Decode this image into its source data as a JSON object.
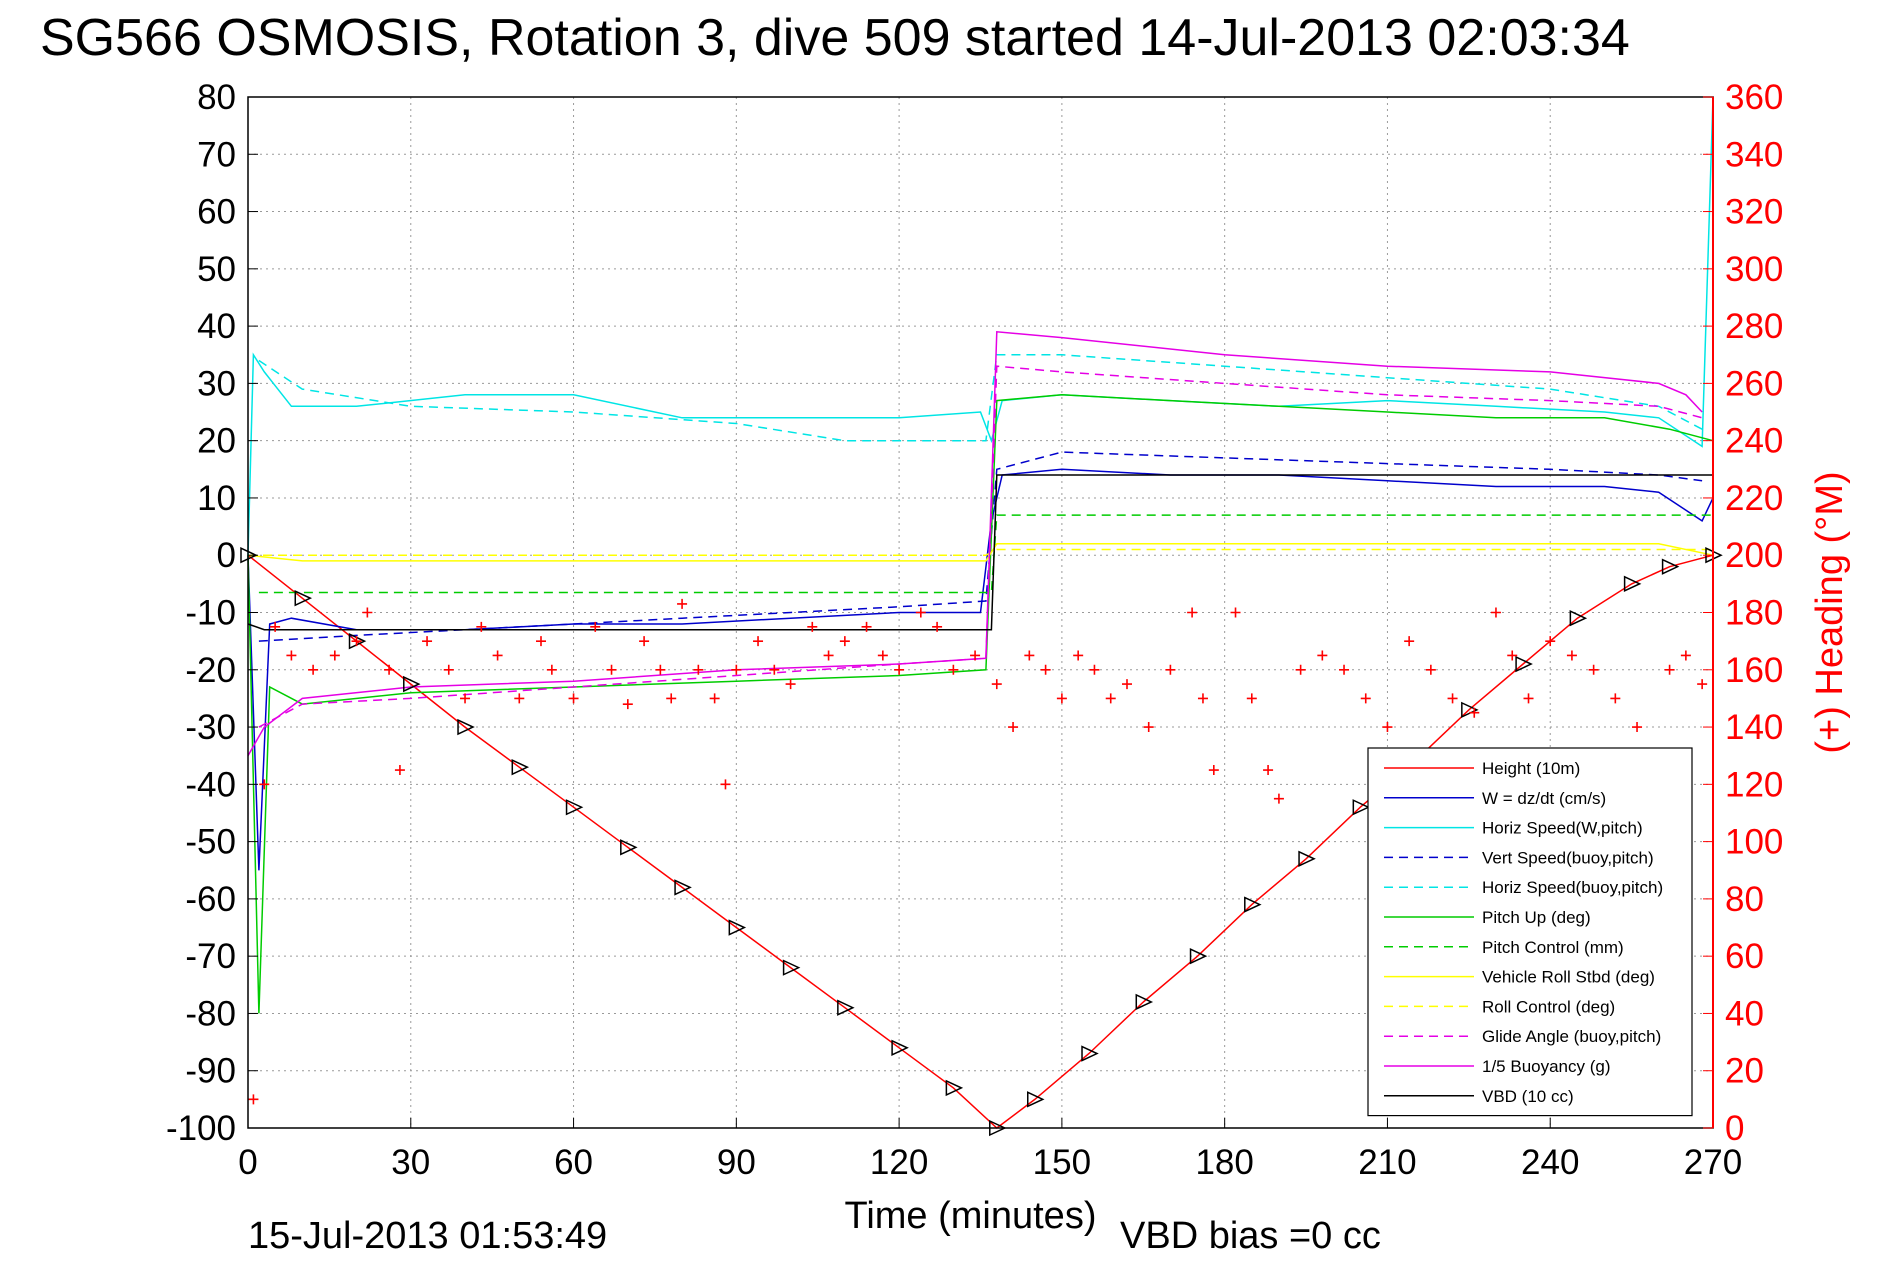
{
  "chart_data": {
    "type": "line",
    "title": "SG566 OSMOSIS, Rotation 3, dive 509 started 14-Jul-2013 02:03:34",
    "xlabel": "Time (minutes)",
    "ylabel_right": "(+) Heading (°M)",
    "xlim": [
      0,
      270
    ],
    "ylim": [
      -100,
      80
    ],
    "ylim_right": [
      0,
      360
    ],
    "x_ticks": [
      0,
      30,
      60,
      90,
      120,
      150,
      180,
      210,
      240,
      270
    ],
    "y_ticks": [
      80,
      70,
      60,
      50,
      40,
      30,
      20,
      10,
      0,
      -10,
      -20,
      -30,
      -40,
      -50,
      -60,
      -70,
      -80,
      -90,
      -100
    ],
    "y_right_ticks": [
      360,
      340,
      320,
      300,
      280,
      260,
      240,
      220,
      200,
      180,
      160,
      140,
      120,
      100,
      80,
      60,
      40,
      20,
      0
    ],
    "grid": true,
    "legend_position": "lower-right",
    "footer_left": "15-Jul-2013 01:53:49",
    "footer_right": "VBD bias =0 cc",
    "series": [
      {
        "name": "Height (10m)",
        "color": "#ff0000",
        "style": "solid",
        "x": [
          0,
          10,
          20,
          30,
          40,
          50,
          60,
          70,
          80,
          90,
          100,
          110,
          120,
          130,
          138,
          145,
          155,
          165,
          175,
          185,
          195,
          205,
          215,
          225,
          235,
          245,
          255,
          262,
          270
        ],
        "y": [
          0,
          -7.5,
          -15,
          -22.5,
          -30,
          -37,
          -44,
          -51,
          -58,
          -65,
          -72,
          -79,
          -86,
          -93,
          -100,
          -95,
          -87,
          -78,
          -70,
          -61,
          -53,
          -44,
          -36,
          -27,
          -19,
          -11,
          -5,
          -2,
          0
        ]
      },
      {
        "name": "W = dz/dt (cm/s)",
        "color": "#0000cc",
        "style": "solid",
        "x": [
          0,
          2,
          4,
          8,
          20,
          40,
          60,
          80,
          100,
          120,
          135,
          137,
          139,
          150,
          170,
          190,
          210,
          230,
          250,
          260,
          268,
          270
        ],
        "y": [
          0,
          -55,
          -12,
          -11,
          -13,
          -13,
          -12,
          -12,
          -11,
          -10,
          -10,
          6,
          14,
          15,
          14,
          14,
          13,
          12,
          12,
          11,
          6,
          10
        ]
      },
      {
        "name": "Horiz Speed(W,pitch)",
        "color": "#00e5e5",
        "style": "solid",
        "x": [
          0,
          1,
          3,
          8,
          20,
          40,
          60,
          80,
          100,
          120,
          135,
          137,
          139,
          150,
          170,
          190,
          210,
          230,
          250,
          260,
          268,
          270
        ],
        "y": [
          0,
          35,
          32,
          26,
          26,
          28,
          28,
          24,
          24,
          24,
          25,
          20,
          27,
          28,
          27,
          26,
          27,
          26,
          25,
          24,
          19,
          80
        ]
      },
      {
        "name": "Vert Speed(buoy,pitch)",
        "color": "#0000cc",
        "style": "dashed",
        "x": [
          2,
          20,
          40,
          60,
          80,
          100,
          120,
          136,
          138,
          150,
          180,
          210,
          240,
          260,
          268
        ],
        "y": [
          -15,
          -14,
          -13,
          -12,
          -11,
          -10,
          -9,
          -8,
          15,
          18,
          17,
          16,
          15,
          14,
          13
        ]
      },
      {
        "name": "Horiz Speed(buoy,pitch)",
        "color": "#00e5e5",
        "style": "dashed",
        "x": [
          2,
          10,
          30,
          60,
          90,
          110,
          136,
          138,
          150,
          180,
          210,
          240,
          260,
          268
        ],
        "y": [
          34,
          29,
          26,
          25,
          23,
          20,
          20,
          35,
          35,
          33,
          31,
          29,
          26,
          22
        ]
      },
      {
        "name": "Pitch Up (deg)",
        "color": "#00cc00",
        "style": "solid",
        "x": [
          0,
          2,
          4,
          10,
          30,
          60,
          90,
          120,
          136,
          138,
          150,
          170,
          190,
          210,
          230,
          250,
          262,
          270
        ],
        "y": [
          0,
          -80,
          -23,
          -26,
          -24,
          -23,
          -22,
          -21,
          -20,
          27,
          28,
          27,
          26,
          25,
          24,
          24,
          22,
          20
        ]
      },
      {
        "name": "Pitch Control (mm)",
        "color": "#00cc00",
        "style": "dashed",
        "x": [
          2,
          60,
          137,
          138,
          270
        ],
        "y": [
          -6.5,
          -6.5,
          -6.5,
          7,
          7
        ]
      },
      {
        "name": "Vehicle Roll Stbd (deg)",
        "color": "#ffff00",
        "style": "solid",
        "x": [
          0,
          10,
          20,
          30,
          40,
          60,
          80,
          100,
          120,
          136,
          138,
          160,
          180,
          200,
          220,
          240,
          260,
          270
        ],
        "y": [
          0,
          -1,
          -1,
          -1,
          -1,
          -1,
          -1,
          -1,
          -1,
          -1,
          2,
          2,
          2,
          2,
          2,
          2,
          2,
          0
        ]
      },
      {
        "name": "Roll Control (deg)",
        "color": "#ffff00",
        "style": "dashed",
        "x": [
          0,
          136,
          138,
          270
        ],
        "y": [
          0,
          0,
          1,
          1
        ]
      },
      {
        "name": "Glide Angle (buoy,pitch)",
        "color": "#e500e5",
        "style": "dashed",
        "x": [
          2,
          10,
          30,
          60,
          90,
          120,
          136,
          138,
          150,
          180,
          210,
          240,
          260,
          268
        ],
        "y": [
          -30,
          -26,
          -25,
          -23,
          -21,
          -19,
          -18,
          33,
          32,
          30,
          28,
          27,
          26,
          24
        ]
      },
      {
        "name": "1/5 Buoyancy (g)",
        "color": "#e500e5",
        "style": "solid",
        "x": [
          0,
          3,
          10,
          30,
          60,
          90,
          120,
          136,
          138,
          150,
          180,
          210,
          240,
          260,
          265,
          268
        ],
        "y": [
          -35,
          -30,
          -25,
          -23,
          -22,
          -20,
          -19,
          -18,
          39,
          38,
          35,
          33,
          32,
          30,
          28,
          25
        ]
      },
      {
        "name": "VBD (10 cc)",
        "color": "#000000",
        "style": "solid",
        "x": [
          0,
          3,
          5,
          137,
          138,
          140,
          270
        ],
        "y": [
          -12,
          -13,
          -13,
          -13,
          14,
          14,
          14
        ]
      }
    ],
    "heading_points": {
      "name": "(+) Heading (°M)",
      "color": "#ff0000",
      "marker": "+",
      "x": [
        1,
        3,
        5,
        8,
        12,
        16,
        20,
        22,
        26,
        28,
        33,
        37,
        40,
        43,
        46,
        50,
        54,
        56,
        60,
        64,
        67,
        70,
        73,
        76,
        78,
        80,
        83,
        86,
        88,
        90,
        94,
        97,
        100,
        104,
        107,
        110,
        114,
        117,
        120,
        124,
        127,
        130,
        134,
        138,
        141,
        144,
        147,
        150,
        153,
        156,
        159,
        162,
        166,
        170,
        174,
        176,
        178,
        182,
        185,
        188,
        190,
        194,
        198,
        202,
        206,
        210,
        214,
        218,
        222,
        226,
        230,
        233,
        236,
        240,
        244,
        248,
        252,
        256,
        259,
        262,
        265,
        268
      ],
      "y": [
        10,
        120,
        175,
        165,
        160,
        165,
        170,
        180,
        160,
        125,
        170,
        160,
        150,
        175,
        165,
        150,
        170,
        160,
        150,
        175,
        160,
        148,
        170,
        160,
        150,
        183,
        160,
        150,
        120,
        160,
        170,
        160,
        155,
        175,
        165,
        170,
        175,
        165,
        160,
        180,
        175,
        160,
        165,
        155,
        140,
        165,
        160,
        150,
        165,
        160,
        150,
        155,
        140,
        160,
        180,
        150,
        125,
        180,
        150,
        125,
        115,
        160,
        165,
        160,
        150,
        140,
        170,
        160,
        150,
        145,
        180,
        165,
        150,
        170,
        165,
        160,
        150,
        140,
        130,
        160,
        165,
        155
      ]
    }
  }
}
